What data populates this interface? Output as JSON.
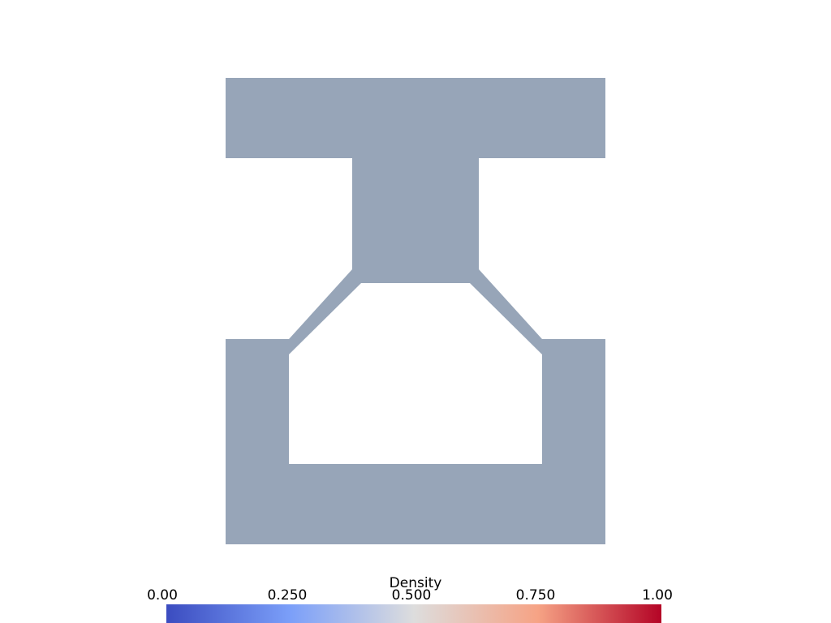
{
  "scene": {
    "fill_color": "#97a5b8",
    "background_color": "#ffffff",
    "field": "Density",
    "field_value": 0.5
  },
  "colorbar": {
    "title": "Density",
    "ticks": [
      "0.00",
      "0.250",
      "0.500",
      "0.750",
      "1.00"
    ],
    "range": [
      0,
      1
    ],
    "colormap": "coolwarm",
    "stops": [
      {
        "offset": 0.0,
        "color": "#3b4cc0"
      },
      {
        "offset": 0.25,
        "color": "#7b9ff9"
      },
      {
        "offset": 0.5,
        "color": "#dddddd"
      },
      {
        "offset": 0.75,
        "color": "#f6a385"
      },
      {
        "offset": 1.0,
        "color": "#b40426"
      }
    ]
  }
}
